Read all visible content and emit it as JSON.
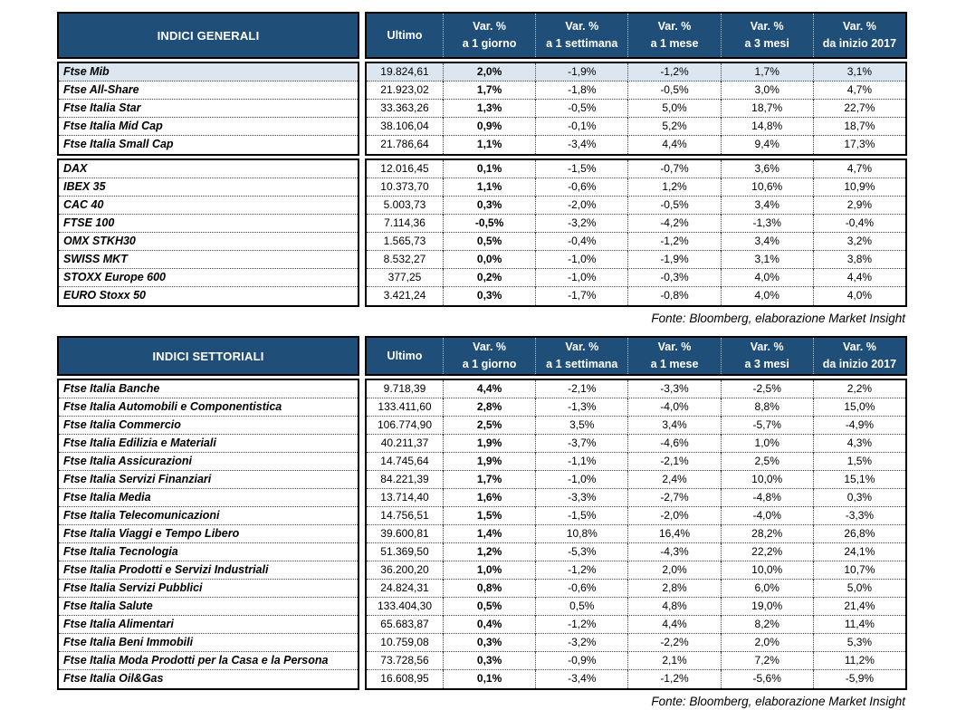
{
  "colors": {
    "header_bg": "#1F4E79",
    "highlight_bg": "#DCE6F1",
    "border": "#000000",
    "dotted": "#4a4a4a"
  },
  "tables": [
    {
      "title": "INDICI GENERALI",
      "ultimo_label": "Ultimo",
      "var_headers": [
        {
          "line1": "Var. %",
          "line2": "a 1 giorno"
        },
        {
          "line1": "Var. %",
          "line2": "a 1 settimana"
        },
        {
          "line1": "Var. %",
          "line2": "a 1 mese"
        },
        {
          "line1": "Var. %",
          "line2": "a 3 mesi"
        },
        {
          "line1": "Var. %",
          "line2": "da inizio 2017"
        }
      ],
      "blocks": [
        {
          "rows": [
            {
              "label": "Ftse Mib",
              "ultimo": "19.824,61",
              "values": [
                "2,0%",
                "-1,9%",
                "-1,2%",
                "1,7%",
                "3,1%"
              ],
              "highlight": true
            },
            {
              "label": "Ftse All-Share",
              "ultimo": "21.923,02",
              "values": [
                "1,7%",
                "-1,8%",
                "-0,5%",
                "3,0%",
                "4,7%"
              ],
              "highlight": false
            },
            {
              "label": "Ftse Italia Star",
              "ultimo": "33.363,26",
              "values": [
                "1,3%",
                "-0,5%",
                "5,0%",
                "18,7%",
                "22,7%"
              ],
              "highlight": false
            },
            {
              "label": "Ftse Italia Mid Cap",
              "ultimo": "38.106,04",
              "values": [
                "0,9%",
                "-0,1%",
                "5,2%",
                "14,8%",
                "18,7%"
              ],
              "highlight": false
            },
            {
              "label": "Ftse Italia Small Cap",
              "ultimo": "21.786,64",
              "values": [
                "1,1%",
                "-3,4%",
                "4,4%",
                "9,4%",
                "17,3%"
              ],
              "highlight": false
            }
          ]
        },
        {
          "rows": [
            {
              "label": "DAX",
              "ultimo": "12.016,45",
              "values": [
                "0,1%",
                "-1,5%",
                "-0,7%",
                "3,6%",
                "4,7%"
              ],
              "highlight": false
            },
            {
              "label": "IBEX 35",
              "ultimo": "10.373,70",
              "values": [
                "1,1%",
                "-0,6%",
                "1,2%",
                "10,6%",
                "10,9%"
              ],
              "highlight": false
            },
            {
              "label": "CAC 40",
              "ultimo": "5.003,73",
              "values": [
                "0,3%",
                "-2,0%",
                "-0,5%",
                "3,4%",
                "2,9%"
              ],
              "highlight": false
            },
            {
              "label": "FTSE 100",
              "ultimo": "7.114,36",
              "values": [
                "-0,5%",
                "-3,2%",
                "-4,2%",
                "-1,3%",
                "-0,4%"
              ],
              "highlight": false
            },
            {
              "label": "OMX STKH30",
              "ultimo": "1.565,73",
              "values": [
                "0,5%",
                "-0,4%",
                "-1,2%",
                "3,4%",
                "3,2%"
              ],
              "highlight": false
            },
            {
              "label": "SWISS MKT",
              "ultimo": "8.532,27",
              "values": [
                "0,0%",
                "-1,0%",
                "-1,9%",
                "3,1%",
                "3,8%"
              ],
              "highlight": false
            },
            {
              "label": "STOXX Europe 600",
              "ultimo": "377,25",
              "values": [
                "0,2%",
                "-1,0%",
                "-0,3%",
                "4,0%",
                "4,4%"
              ],
              "highlight": false
            },
            {
              "label": "EURO Stoxx 50",
              "ultimo": "3.421,24",
              "values": [
                "0,3%",
                "-1,7%",
                "-0,8%",
                "4,0%",
                "4,0%"
              ],
              "highlight": false
            }
          ]
        }
      ],
      "source": "Fonte: Bloomberg, elaborazione Market Insight"
    },
    {
      "title": "INDICI SETTORIALI",
      "ultimo_label": "Ultimo",
      "var_headers": [
        {
          "line1": "Var. %",
          "line2": "a 1 giorno"
        },
        {
          "line1": "Var. %",
          "line2": "a 1 settimana"
        },
        {
          "line1": "Var. %",
          "line2": "a 1 mese"
        },
        {
          "line1": "Var. %",
          "line2": "a 3 mesi"
        },
        {
          "line1": "Var. %",
          "line2": "da inizio 2017"
        }
      ],
      "blocks": [
        {
          "rows": [
            {
              "label": "Ftse Italia Banche",
              "ultimo": "9.718,39",
              "values": [
                "4,4%",
                "-2,1%",
                "-3,3%",
                "-2,5%",
                "2,2%"
              ],
              "highlight": false
            },
            {
              "label": "Ftse Italia Automobili e Componentistica",
              "ultimo": "133.411,60",
              "values": [
                "2,8%",
                "-1,3%",
                "-4,0%",
                "8,8%",
                "15,0%"
              ],
              "highlight": false
            },
            {
              "label": "Ftse Italia Commercio",
              "ultimo": "106.774,90",
              "values": [
                "2,5%",
                "3,5%",
                "3,4%",
                "-5,7%",
                "-4,9%"
              ],
              "highlight": false
            },
            {
              "label": "Ftse Italia Edilizia e Materiali",
              "ultimo": "40.211,37",
              "values": [
                "1,9%",
                "-3,7%",
                "-4,6%",
                "1,0%",
                "4,3%"
              ],
              "highlight": false
            },
            {
              "label": "Ftse Italia Assicurazioni",
              "ultimo": "14.745,64",
              "values": [
                "1,9%",
                "-1,1%",
                "-2,1%",
                "2,5%",
                "1,5%"
              ],
              "highlight": false
            },
            {
              "label": "Ftse Italia Servizi Finanziari",
              "ultimo": "84.221,39",
              "values": [
                "1,7%",
                "-1,0%",
                "2,4%",
                "10,0%",
                "15,1%"
              ],
              "highlight": false
            },
            {
              "label": "Ftse Italia Media",
              "ultimo": "13.714,40",
              "values": [
                "1,6%",
                "-3,3%",
                "-2,7%",
                "-4,8%",
                "0,3%"
              ],
              "highlight": false
            },
            {
              "label": "Ftse Italia Telecomunicazioni",
              "ultimo": "14.756,51",
              "values": [
                "1,5%",
                "-1,5%",
                "-2,0%",
                "-4,0%",
                "-3,3%"
              ],
              "highlight": false
            },
            {
              "label": "Ftse Italia Viaggi e Tempo Libero",
              "ultimo": "39.600,81",
              "values": [
                "1,4%",
                "10,8%",
                "16,4%",
                "28,2%",
                "26,8%"
              ],
              "highlight": false
            },
            {
              "label": "Ftse Italia Tecnologia",
              "ultimo": "51.369,50",
              "values": [
                "1,2%",
                "-5,3%",
                "-4,3%",
                "22,2%",
                "24,1%"
              ],
              "highlight": false
            },
            {
              "label": "Ftse Italia Prodotti e Servizi Industriali",
              "ultimo": "36.200,20",
              "values": [
                "1,0%",
                "-1,2%",
                "2,0%",
                "10,0%",
                "10,7%"
              ],
              "highlight": false
            },
            {
              "label": "Ftse Italia Servizi Pubblici",
              "ultimo": "24.824,31",
              "values": [
                "0,8%",
                "-0,6%",
                "2,8%",
                "6,0%",
                "5,0%"
              ],
              "highlight": false
            },
            {
              "label": "Ftse Italia Salute",
              "ultimo": "133.404,30",
              "values": [
                "0,5%",
                "0,5%",
                "4,8%",
                "19,0%",
                "21,4%"
              ],
              "highlight": false
            },
            {
              "label": "Ftse Italia Alimentari",
              "ultimo": "65.683,87",
              "values": [
                "0,4%",
                "-1,2%",
                "4,4%",
                "8,2%",
                "11,4%"
              ],
              "highlight": false
            },
            {
              "label": "Ftse Italia Beni Immobili",
              "ultimo": "10.759,08",
              "values": [
                "0,3%",
                "-3,2%",
                "-2,2%",
                "2,0%",
                "5,3%"
              ],
              "highlight": false
            },
            {
              "label": "Ftse Italia Moda Prodotti per la Casa e la Persona",
              "ultimo": "73.728,56",
              "values": [
                "0,3%",
                "-0,9%",
                "2,1%",
                "7,2%",
                "11,2%"
              ],
              "highlight": false
            },
            {
              "label": "Ftse Italia Oil&Gas",
              "ultimo": "16.608,95",
              "values": [
                "0,1%",
                "-3,4%",
                "-1,2%",
                "-5,6%",
                "-5,9%"
              ],
              "highlight": false
            }
          ]
        }
      ],
      "source": "Fonte: Bloomberg, elaborazione Market Insight"
    }
  ]
}
